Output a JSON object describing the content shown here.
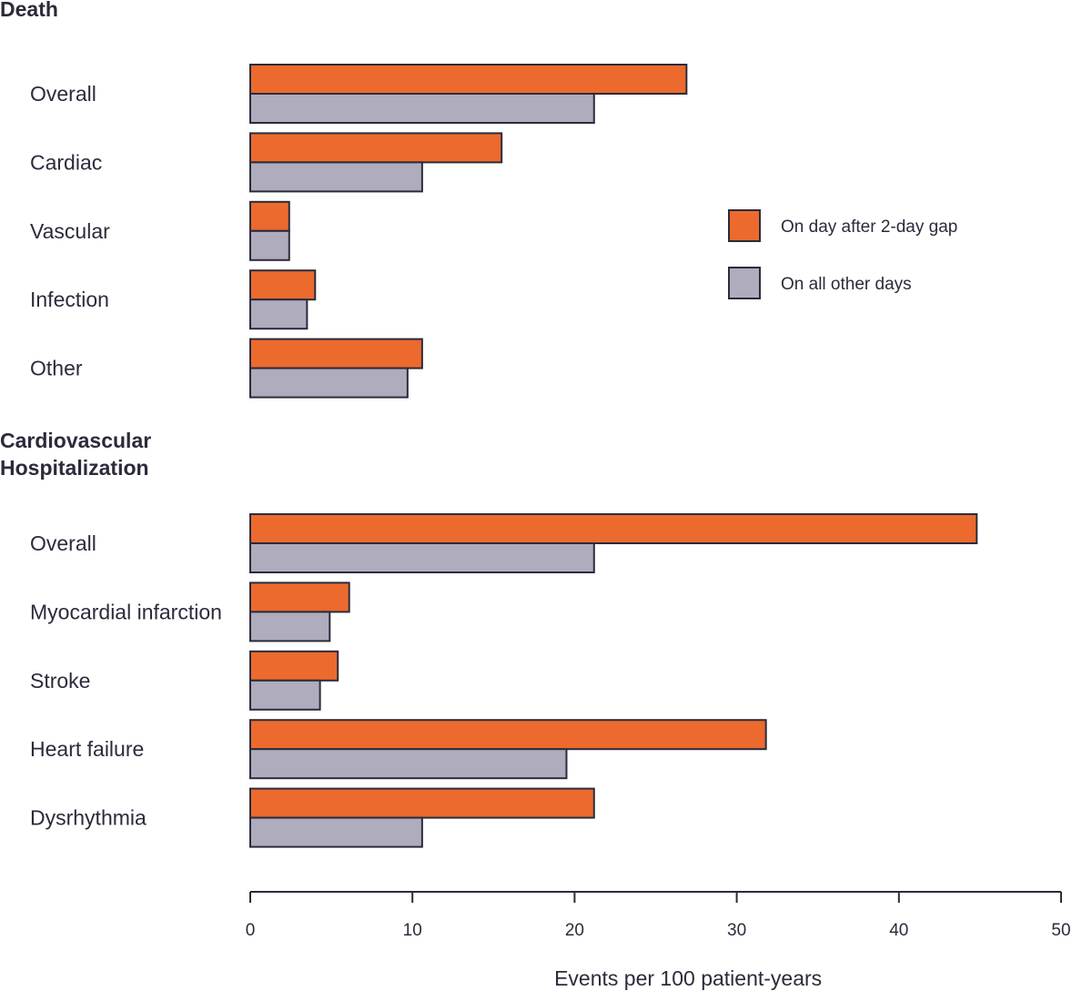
{
  "chart_data": {
    "type": "bar",
    "orientation": "horizontal",
    "xlabel": "Events per 100 patient-years",
    "xlim": [
      0,
      50
    ],
    "xticks": [
      0,
      10,
      20,
      30,
      40,
      50
    ],
    "grid": false,
    "legend_position": "right",
    "series": [
      {
        "name": "On day after 2-day gap",
        "color": "#ec6a2d"
      },
      {
        "name": "On all other days",
        "color": "#aeacbd"
      }
    ],
    "groups": [
      {
        "title": "Death",
        "categories": [
          {
            "label": "Overall",
            "values": [
              26.9,
              21.2
            ]
          },
          {
            "label": "Cardiac",
            "values": [
              15.5,
              10.6
            ]
          },
          {
            "label": "Vascular",
            "values": [
              2.4,
              2.4
            ]
          },
          {
            "label": "Infection",
            "values": [
              4.0,
              3.5
            ]
          },
          {
            "label": "Other",
            "values": [
              10.6,
              9.7
            ]
          }
        ]
      },
      {
        "title": "Cardiovascular Hospitalization",
        "title_lines": [
          "Cardiovascular",
          "Hospitalization"
        ],
        "categories": [
          {
            "label": "Overall",
            "values": [
              44.8,
              21.2
            ]
          },
          {
            "label": "Myocardial infarction",
            "values": [
              6.1,
              4.9
            ]
          },
          {
            "label": "Stroke",
            "values": [
              5.4,
              4.3
            ]
          },
          {
            "label": "Heart failure",
            "values": [
              31.8,
              19.5
            ]
          },
          {
            "label": "Dysrhythmia",
            "values": [
              21.2,
              10.6
            ]
          }
        ]
      }
    ]
  }
}
